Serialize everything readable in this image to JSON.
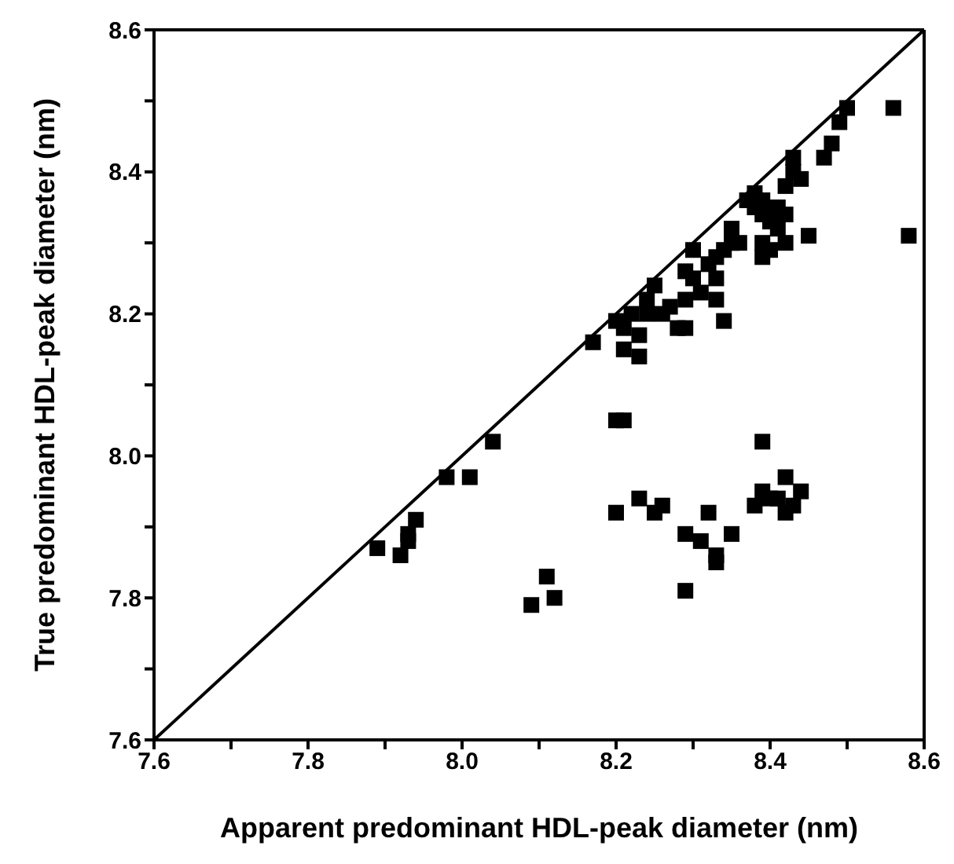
{
  "chart_data": {
    "type": "scatter",
    "xlabel": "Apparent predominant HDL-peak diameter (nm)",
    "ylabel": "True predominant HDL-peak diameter (nm)",
    "xlim": [
      7.6,
      8.6
    ],
    "ylim": [
      7.6,
      8.6
    ],
    "xticks": [
      7.6,
      {
        "value": 7.7,
        "label": null
      },
      7.8,
      {
        "value": 7.9,
        "label": null
      },
      "8.0",
      {
        "value": 8.1,
        "label": null
      },
      8.2,
      {
        "value": 8.3,
        "label": null
      },
      8.4,
      {
        "value": 8.5,
        "label": null
      },
      8.6
    ],
    "yticks": [
      7.6,
      {
        "value": 7.7,
        "label": null
      },
      7.8,
      {
        "value": 7.9,
        "label": null
      },
      {
        "value": 8.0,
        "label": "8.0"
      },
      {
        "value": 8.1,
        "label": null
      },
      8.2,
      {
        "value": 8.3,
        "label": null
      },
      8.4,
      {
        "value": 8.5,
        "label": null
      },
      8.6
    ],
    "grid": false,
    "legend": false,
    "marker": "square",
    "series": [
      {
        "color": "#000000",
        "x": [
          7.89,
          7.92,
          7.93,
          7.93,
          7.94,
          7.98,
          8.01,
          8.04,
          8.17,
          8.2,
          8.21,
          8.21,
          8.22,
          8.23,
          8.23,
          8.24,
          8.24,
          8.25,
          8.26,
          8.27,
          8.28,
          8.29,
          8.29,
          8.29,
          8.3,
          8.3,
          8.31,
          8.32,
          8.33,
          8.33,
          8.34,
          8.33,
          8.34,
          8.35,
          8.35,
          8.36,
          8.37,
          8.38,
          8.38,
          8.39,
          8.39,
          8.39,
          8.39,
          8.4,
          8.41,
          8.41,
          8.42,
          8.42,
          8.43,
          8.43,
          8.44,
          8.45,
          8.47,
          8.48,
          8.49,
          8.5,
          8.56,
          8.58,
          8.4,
          8.42,
          8.2,
          8.21,
          8.2,
          8.23,
          8.25,
          8.26,
          8.29,
          8.29,
          8.31,
          8.32,
          8.33,
          8.33,
          8.35,
          8.38,
          8.39,
          8.39,
          8.4,
          8.41,
          8.42,
          8.42,
          8.44,
          8.09,
          8.11,
          8.12,
          8.43
        ],
        "values": [
          7.87,
          7.86,
          7.88,
          7.89,
          7.91,
          7.97,
          7.97,
          8.02,
          8.16,
          8.19,
          8.15,
          8.18,
          8.2,
          8.17,
          8.14,
          8.2,
          8.22,
          8.24,
          8.2,
          8.21,
          8.18,
          8.18,
          8.22,
          8.26,
          8.29,
          8.25,
          8.23,
          8.27,
          8.25,
          8.22,
          8.19,
          8.28,
          8.29,
          8.3,
          8.32,
          8.3,
          8.36,
          8.37,
          8.35,
          8.36,
          8.34,
          8.3,
          8.28,
          8.33,
          8.32,
          8.35,
          8.38,
          8.34,
          8.4,
          8.42,
          8.39,
          8.31,
          8.42,
          8.44,
          8.47,
          8.49,
          8.49,
          8.31,
          8.29,
          8.3,
          8.05,
          8.05,
          7.92,
          7.94,
          7.92,
          7.93,
          7.89,
          7.81,
          7.88,
          7.92,
          7.85,
          7.86,
          7.89,
          7.93,
          7.95,
          8.02,
          7.94,
          7.94,
          7.97,
          7.92,
          7.95,
          7.79,
          7.83,
          7.8,
          7.93
        ]
      },
      {
        "type": "line",
        "color": "#000000",
        "x": [
          7.6,
          8.6
        ],
        "values": [
          7.6,
          8.6
        ],
        "marker": "none",
        "line_style": "solid"
      }
    ]
  }
}
